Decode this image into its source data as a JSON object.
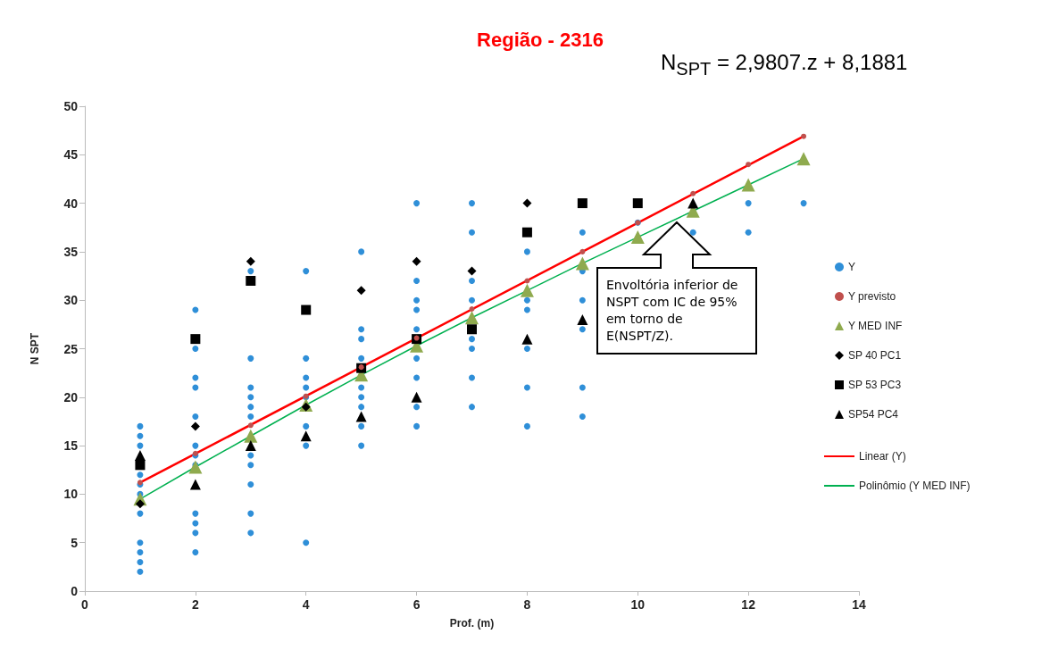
{
  "chart_data": {
    "type": "scatter",
    "title": "Região - 2316",
    "xlabel": "Prof. (m)",
    "ylabel": "N SPT",
    "xlim": [
      0,
      14
    ],
    "xticks": [
      0,
      2,
      4,
      6,
      8,
      10,
      12,
      14
    ],
    "ylim": [
      0,
      50
    ],
    "yticks": [
      0,
      5,
      10,
      15,
      20,
      25,
      30,
      35,
      40,
      45,
      50
    ],
    "grid": false,
    "legend": "right",
    "annotations": [
      "N$_{SPT}$ = 2,9807.z + 8,1881",
      "Envoltória inferior de NSPT com IC de 95% em torno de E(NSPT/Z)."
    ],
    "series": [
      {
        "name": "Y",
        "color": "#2f8fd8",
        "marker": "circle",
        "x": [
          1,
          1,
          1,
          1,
          1,
          1,
          1,
          1,
          1,
          1,
          1,
          2,
          2,
          2,
          2,
          2,
          2,
          2,
          2,
          2,
          2,
          2,
          2,
          3,
          3,
          3,
          3,
          3,
          3,
          3,
          3,
          3,
          3,
          3,
          4,
          4,
          4,
          4,
          4,
          4,
          4,
          4,
          5,
          5,
          5,
          5,
          5,
          5,
          5,
          5,
          5,
          6,
          6,
          6,
          6,
          6,
          6,
          6,
          6,
          6,
          7,
          7,
          7,
          7,
          7,
          7,
          7,
          7,
          8,
          8,
          8,
          8,
          8,
          8,
          9,
          9,
          9,
          9,
          9,
          9,
          10,
          11,
          12,
          12,
          13
        ],
        "values": [
          17,
          16,
          15,
          12,
          11,
          10,
          8,
          5,
          4,
          3,
          2,
          29,
          25,
          22,
          21,
          18,
          15,
          14,
          13,
          8,
          7,
          6,
          4,
          33,
          24,
          21,
          20,
          19,
          18,
          14,
          13,
          11,
          8,
          6,
          33,
          24,
          22,
          21,
          20,
          17,
          15,
          5,
          35,
          27,
          26,
          24,
          21,
          20,
          19,
          17,
          15,
          40,
          32,
          30,
          29,
          27,
          24,
          22,
          19,
          17,
          40,
          37,
          32,
          30,
          26,
          25,
          22,
          19,
          35,
          30,
          29,
          25,
          21,
          17,
          37,
          33,
          30,
          27,
          21,
          18,
          38,
          37,
          40,
          37,
          40
        ]
      },
      {
        "name": "Y previsto",
        "color": "#c0504d",
        "marker": "circle",
        "x": [
          1,
          2,
          3,
          4,
          5,
          6,
          7,
          8,
          9,
          10,
          11,
          12,
          13
        ],
        "values": [
          11.2,
          14.2,
          17.1,
          20.1,
          23.1,
          26.1,
          29.1,
          32,
          35,
          38,
          41,
          44,
          46.9
        ]
      },
      {
        "name": "Y MED INF",
        "color": "#8faa4e",
        "marker": "triangle",
        "x": [
          1,
          2,
          3,
          4,
          5,
          6,
          7,
          8,
          9,
          10,
          11,
          12,
          13
        ],
        "values": [
          9.5,
          12.8,
          16,
          19.2,
          22.3,
          25.3,
          28.2,
          31,
          33.8,
          36.5,
          39.2,
          41.9,
          44.6
        ]
      },
      {
        "name": "SP 40 PC1",
        "color": "#000000",
        "marker": "diamond",
        "x": [
          1,
          2,
          3,
          4,
          5,
          6,
          7,
          8
        ],
        "values": [
          9,
          17,
          34,
          19,
          31,
          34,
          33,
          40
        ]
      },
      {
        "name": "SP 53 PC3",
        "color": "#000000",
        "marker": "square",
        "x": [
          1,
          2,
          3,
          4,
          5,
          6,
          7,
          8,
          9,
          10
        ],
        "values": [
          13,
          26,
          32,
          29,
          23,
          26,
          27,
          37,
          40,
          40
        ]
      },
      {
        "name": "SP54 PC4",
        "color": "#000000",
        "marker": "triangle",
        "x": [
          1,
          2,
          3,
          4,
          5,
          6,
          8,
          9,
          11
        ],
        "values": [
          14,
          11,
          15,
          16,
          18,
          20,
          26,
          28,
          40
        ]
      },
      {
        "name": "Linear (Y)",
        "type": "line",
        "color": "#ff0000",
        "marker": "none",
        "line_style": "solid",
        "x": [
          1,
          13
        ],
        "values": [
          11.2,
          46.9
        ]
      },
      {
        "name": "Polinômio (Y MED INF)",
        "type": "line",
        "color": "#00b050",
        "marker": "none",
        "line_style": "solid",
        "x": [
          1,
          2,
          3,
          4,
          5,
          6,
          7,
          8,
          9,
          10,
          11,
          12,
          13
        ],
        "values": [
          9.5,
          12.8,
          16,
          19.2,
          22.3,
          25.3,
          28.2,
          31,
          33.8,
          36.5,
          39.2,
          41.9,
          44.6
        ]
      }
    ]
  }
}
